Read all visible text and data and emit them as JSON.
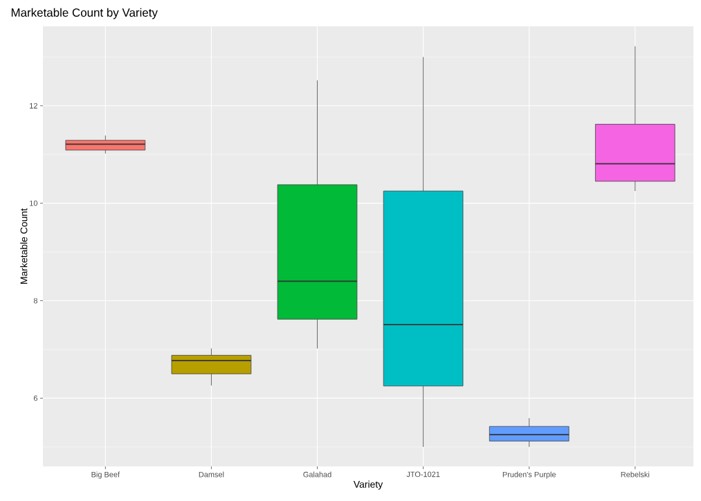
{
  "chart_data": {
    "type": "box",
    "title": "Marketable Count by Variety",
    "xlabel": "Variety",
    "ylabel": "Marketable Count",
    "categories": [
      "Big Beef",
      "Damsel",
      "Galahad",
      "JTO-1021",
      "Pruden's Purple",
      "Rebelski"
    ],
    "boxes": [
      {
        "low": 11.02,
        "q1": 11.09,
        "median": 11.21,
        "q3": 11.29,
        "high": 11.39
      },
      {
        "low": 6.26,
        "q1": 6.5,
        "median": 6.77,
        "q3": 6.88,
        "high": 7.02
      },
      {
        "low": 7.02,
        "q1": 7.62,
        "median": 8.4,
        "q3": 10.38,
        "high": 12.52
      },
      {
        "low": 5.0,
        "q1": 6.25,
        "median": 7.51,
        "q3": 10.25,
        "high": 13.0
      },
      {
        "low": 5.0,
        "q1": 5.12,
        "median": 5.25,
        "q3": 5.42,
        "high": 5.59
      },
      {
        "low": 10.25,
        "q1": 10.45,
        "median": 10.81,
        "q3": 11.62,
        "high": 13.22
      }
    ],
    "colors": [
      "#f8766d",
      "#b79f00",
      "#00ba38",
      "#00bfc4",
      "#619cff",
      "#f564e3"
    ],
    "ylim": [
      4.6,
      13.63
    ],
    "yticks": [
      6,
      8,
      10,
      12
    ],
    "grid": true
  }
}
